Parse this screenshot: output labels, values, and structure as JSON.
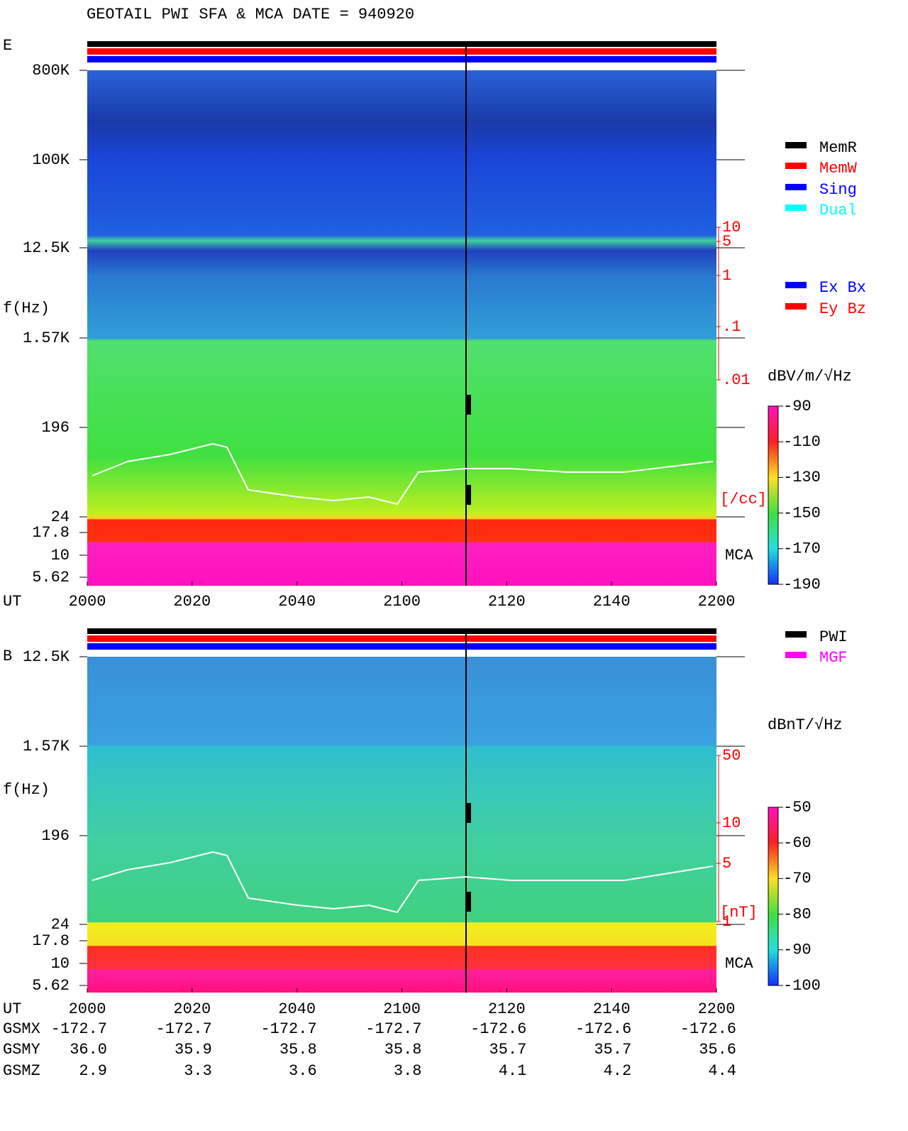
{
  "title": "GEOTAIL  PWI SFA & MCA   DATE = 940920",
  "panels": [
    {
      "label": "E",
      "ylabel": "f(Hz)",
      "yticks": [
        "800K",
        "100K",
        "12.5K",
        "1.57K",
        "196",
        "24",
        "17.8",
        "10",
        "5.62"
      ],
      "xlabel": "UT",
      "xticks": [
        "2000",
        "2020",
        "2040",
        "2100",
        "2120",
        "2140",
        "2200"
      ],
      "legend": [
        {
          "name": "MemR",
          "color": "#000000"
        },
        {
          "name": "MemW",
          "color": "#ff0000"
        },
        {
          "name": "Sing",
          "color": "#0000ff"
        },
        {
          "name": "Dual",
          "color": "#00ffff"
        }
      ],
      "legend2": [
        {
          "name": "Ex Bx",
          "color": "#0000ff"
        },
        {
          "name": "Ey Bz",
          "color": "#ff0000"
        }
      ],
      "right_ticks": [
        "10",
        "5",
        "1",
        ".1",
        ".01"
      ],
      "right_unit": "[/cc]",
      "mca": "MCA",
      "colorbar_unit": "dBV/m/√Hz",
      "colorbar_ticks": [
        -90,
        -110,
        -130,
        -150,
        -170,
        -190
      ]
    },
    {
      "label": "B",
      "ylabel": "f(Hz)",
      "yticks": [
        "12.5K",
        "1.57K",
        "196",
        "24",
        "17.8",
        "10",
        "5.62"
      ],
      "xlabel": "UT",
      "xticks": [
        "2000",
        "2020",
        "2040",
        "2100",
        "2120",
        "2140",
        "2200"
      ],
      "legend": [
        {
          "name": "PWI",
          "color": "#000000"
        },
        {
          "name": "MGF",
          "color": "#ff00ff"
        }
      ],
      "right_ticks": [
        "50",
        "10",
        "5",
        "1"
      ],
      "right_unit": "[nT]",
      "mca": "MCA",
      "colorbar_unit": "dBnT/√Hz",
      "colorbar_ticks": [
        -50,
        -60,
        -70,
        -80,
        -90,
        -100
      ]
    }
  ],
  "orbit": [
    {
      "label": "GSMX",
      "values": [
        "-172.7",
        "-172.7",
        "-172.7",
        "-172.7",
        "-172.6",
        "-172.6",
        "-172.6"
      ]
    },
    {
      "label": "GSMY",
      "values": [
        "36.0",
        "35.9",
        "35.8",
        "35.8",
        "35.7",
        "35.7",
        "35.6"
      ]
    },
    {
      "label": "GSMZ",
      "values": [
        "2.9",
        "3.3",
        "3.6",
        "3.8",
        "4.1",
        "4.2",
        "4.4"
      ]
    }
  ]
}
